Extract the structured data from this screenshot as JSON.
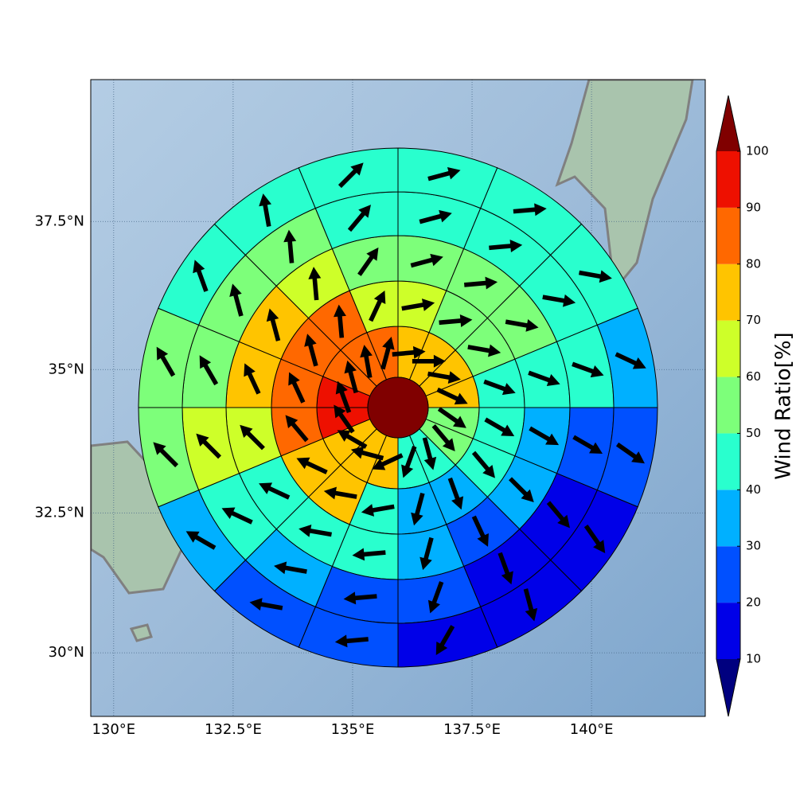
{
  "chart_data": {
    "type": "polar",
    "xlim": [
      129.52,
      142.38
    ],
    "ylim": [
      28.84,
      39.82
    ],
    "xticks": [
      {
        "value": 130,
        "label": "130°E"
      },
      {
        "value": 132.5,
        "label": "132.5°E"
      },
      {
        "value": 135,
        "label": "135°E"
      },
      {
        "value": 137.5,
        "label": "137.5°E"
      },
      {
        "value": 140,
        "label": "140°E"
      }
    ],
    "yticks": [
      {
        "value": 30,
        "label": "30°N"
      },
      {
        "value": 32.5,
        "label": "32.5°N"
      },
      {
        "value": 35,
        "label": "35°N"
      },
      {
        "value": 37.5,
        "label": "37.5°N"
      }
    ],
    "grid": true,
    "center_value": 105,
    "values": [
      [
        75,
        75,
        75,
        75,
        55,
        55,
        45,
        45,
        75,
        75,
        75,
        95,
        95,
        85,
        85,
        85
      ],
      [
        65,
        55,
        55,
        45,
        45,
        45,
        35,
        35,
        45,
        75,
        75,
        85,
        85,
        85,
        85,
        65
      ],
      [
        55,
        55,
        55,
        45,
        35,
        35,
        25,
        35,
        45,
        45,
        45,
        65,
        75,
        75,
        65,
        55
      ],
      [
        45,
        45,
        45,
        45,
        25,
        15,
        15,
        25,
        25,
        35,
        45,
        65,
        55,
        55,
        55,
        45
      ],
      [
        45,
        45,
        45,
        35,
        25,
        15,
        15,
        15,
        25,
        25,
        35,
        55,
        55,
        45,
        45,
        45
      ]
    ],
    "directions": [
      [
        85,
        90,
        100,
        115,
        125,
        140,
        165,
        200,
        245,
        285,
        300,
        325,
        340,
        345,
        350,
        15
      ],
      [
        80,
        85,
        100,
        110,
        120,
        140,
        160,
        195,
        260,
        280,
        295,
        320,
        335,
        345,
        355,
        25
      ],
      [
        75,
        85,
        100,
        110,
        120,
        135,
        155,
        195,
        265,
        280,
        295,
        315,
        335,
        345,
        355,
        35
      ],
      [
        75,
        85,
        100,
        110,
        120,
        140,
        160,
        200,
        265,
        280,
        295,
        315,
        330,
        345,
        355,
        40
      ],
      [
        75,
        85,
        100,
        115,
        125,
        145,
        165,
        210,
        265,
        280,
        300,
        315,
        330,
        340,
        350,
        45
      ]
    ],
    "colorbar_ticks": [
      10,
      20,
      30,
      40,
      50,
      60,
      70,
      80,
      90,
      100
    ],
    "colors": [
      "#00007f",
      "#0000e8",
      "#0050ff",
      "#00b0ff",
      "#29ffce",
      "#7dff7a",
      "#ceff29",
      "#ffc400",
      "#ff6800",
      "#ee1000",
      "#800000"
    ],
    "colorbar_label": "Wind Ratio[%]"
  }
}
